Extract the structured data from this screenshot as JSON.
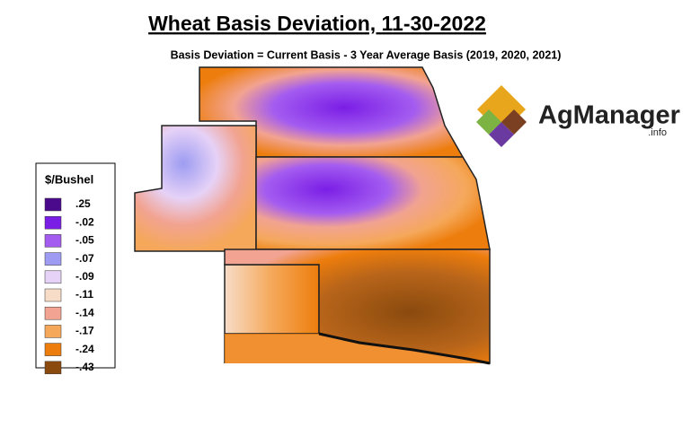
{
  "title": "Wheat Basis Deviation, 11-30-2022",
  "subtitle": "Basis Deviation = Current Basis - 3 Year Average Basis (2019, 2020, 2021)",
  "legend": {
    "title": "$/Bushel",
    "items": [
      {
        "label": ".25",
        "color": "#4b0a8c"
      },
      {
        "label": "-.02",
        "color": "#7a1ee6"
      },
      {
        "label": "-.05",
        "color": "#a45cf0"
      },
      {
        "label": "-.07",
        "color": "#9d9cf2"
      },
      {
        "label": "-.09",
        "color": "#e6d2f7"
      },
      {
        "label": "-.11",
        "color": "#f7dcc8"
      },
      {
        "label": "-.14",
        "color": "#f2a391"
      },
      {
        "label": "-.17",
        "color": "#f5a85a"
      },
      {
        "label": "-.24",
        "color": "#ed7d0c"
      },
      {
        "label": "-.43",
        "color": "#8a4a0e"
      }
    ]
  },
  "logo": {
    "name": "AgManager",
    "suffix": ".info"
  }
}
